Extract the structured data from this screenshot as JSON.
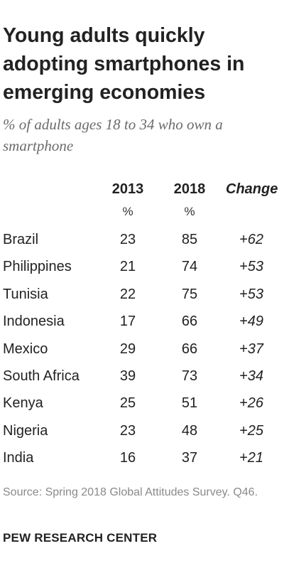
{
  "chart_data": {
    "type": "table",
    "title": "Young adults quickly adopting smartphones in emerging economies",
    "subtitle": "% of adults ages 18 to 34 who own a smartphone",
    "columns": [
      "2013",
      "2018",
      "Change"
    ],
    "units": [
      "%",
      "%"
    ],
    "rows": [
      {
        "country": "Brazil",
        "y2013": "23",
        "y2018": "85",
        "change": "+62"
      },
      {
        "country": "Philippines",
        "y2013": "21",
        "y2018": "74",
        "change": "+53"
      },
      {
        "country": "Tunisia",
        "y2013": "22",
        "y2018": "75",
        "change": "+53"
      },
      {
        "country": "Indonesia",
        "y2013": "17",
        "y2018": "66",
        "change": "+49"
      },
      {
        "country": "Mexico",
        "y2013": "29",
        "y2018": "66",
        "change": "+37"
      },
      {
        "country": "South Africa",
        "y2013": "39",
        "y2018": "73",
        "change": "+34"
      },
      {
        "country": "Kenya",
        "y2013": "25",
        "y2018": "51",
        "change": "+26"
      },
      {
        "country": "Nigeria",
        "y2013": "23",
        "y2018": "48",
        "change": "+25"
      },
      {
        "country": "India",
        "y2013": "16",
        "y2018": "37",
        "change": "+21"
      }
    ],
    "source": "Source: Spring 2018 Global Attitudes Survey. Q46.",
    "credit": "PEW RESEARCH CENTER"
  }
}
